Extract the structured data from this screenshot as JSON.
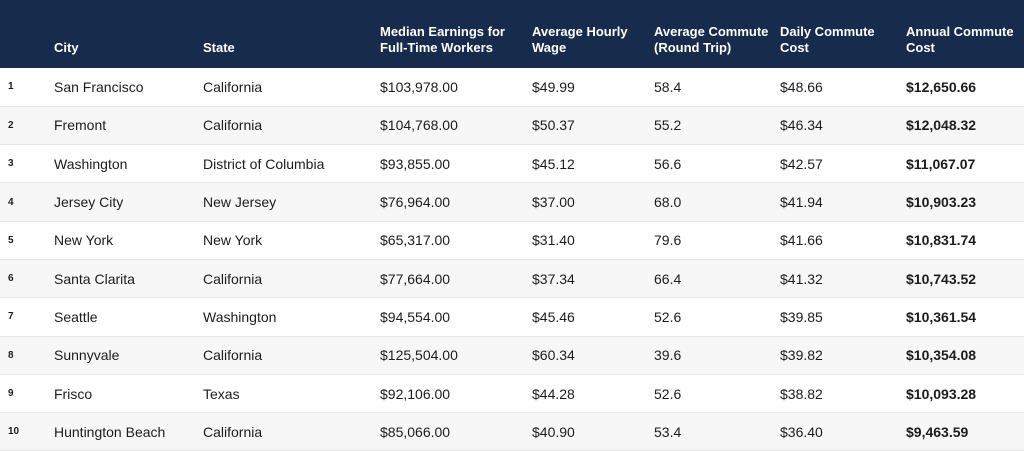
{
  "headers": {
    "rank": "",
    "city": "City",
    "state": "State",
    "median": "Median Earnings for Full-Time Workers",
    "hourly": "Average Hourly Wage",
    "commute": "Average Commute (Round Trip)",
    "daily": "Daily Commute Cost",
    "annual": "Annual Commute Cost"
  },
  "rows": [
    {
      "rank": "1",
      "city": "San Francisco",
      "state": "California",
      "median": "$103,978.00",
      "hourly": "$49.99",
      "commute": "58.4",
      "daily": "$48.66",
      "annual": "$12,650.66"
    },
    {
      "rank": "2",
      "city": "Fremont",
      "state": "California",
      "median": "$104,768.00",
      "hourly": "$50.37",
      "commute": "55.2",
      "daily": "$46.34",
      "annual": "$12,048.32"
    },
    {
      "rank": "3",
      "city": "Washington",
      "state": "District of Columbia",
      "median": "$93,855.00",
      "hourly": "$45.12",
      "commute": "56.6",
      "daily": "$42.57",
      "annual": "$11,067.07"
    },
    {
      "rank": "4",
      "city": "Jersey City",
      "state": "New Jersey",
      "median": "$76,964.00",
      "hourly": "$37.00",
      "commute": "68.0",
      "daily": "$41.94",
      "annual": "$10,903.23"
    },
    {
      "rank": "5",
      "city": "New York",
      "state": "New York",
      "median": "$65,317.00",
      "hourly": "$31.40",
      "commute": "79.6",
      "daily": "$41.66",
      "annual": "$10,831.74"
    },
    {
      "rank": "6",
      "city": "Santa Clarita",
      "state": "California",
      "median": "$77,664.00",
      "hourly": "$37.34",
      "commute": "66.4",
      "daily": "$41.32",
      "annual": "$10,743.52"
    },
    {
      "rank": "7",
      "city": "Seattle",
      "state": "Washington",
      "median": "$94,554.00",
      "hourly": "$45.46",
      "commute": "52.6",
      "daily": "$39.85",
      "annual": "$10,361.54"
    },
    {
      "rank": "8",
      "city": "Sunnyvale",
      "state": "California",
      "median": "$125,504.00",
      "hourly": "$60.34",
      "commute": "39.6",
      "daily": "$39.82",
      "annual": "$10,354.08"
    },
    {
      "rank": "9",
      "city": "Frisco",
      "state": "Texas",
      "median": "$92,106.00",
      "hourly": "$44.28",
      "commute": "52.6",
      "daily": "$38.82",
      "annual": "$10,093.28"
    },
    {
      "rank": "10",
      "city": "Huntington Beach",
      "state": "California",
      "median": "$85,066.00",
      "hourly": "$40.90",
      "commute": "53.4",
      "daily": "$36.40",
      "annual": "$9,463.59"
    }
  ],
  "colors": {
    "header_bg": "#172b4d",
    "header_text": "#ffffff",
    "row_alt": "#f7f7f7"
  }
}
